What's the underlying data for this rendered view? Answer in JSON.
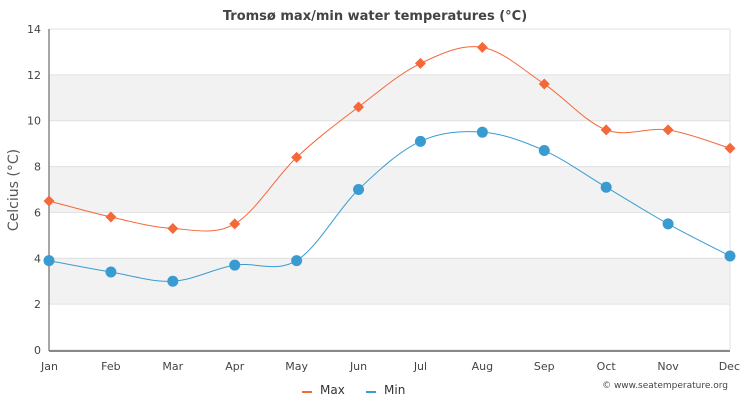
{
  "chart_data": {
    "type": "line",
    "title": "Tromsø max/min water temperatures (°C)",
    "xlabel": "",
    "ylabel": "Celcius (°C)",
    "categories": [
      "Jan",
      "Feb",
      "Mar",
      "Apr",
      "May",
      "Jun",
      "Jul",
      "Aug",
      "Sep",
      "Oct",
      "Nov",
      "Dec"
    ],
    "ylim": [
      0,
      14
    ],
    "yticks": [
      0,
      2,
      4,
      6,
      8,
      10,
      12,
      14
    ],
    "grid": true,
    "legend": "bottom-center",
    "series": [
      {
        "name": "Max",
        "color": "#f4683a",
        "marker": "diamond",
        "values": [
          6.5,
          5.8,
          5.3,
          5.5,
          8.4,
          10.6,
          12.5,
          13.2,
          11.6,
          9.6,
          9.6,
          8.8
        ]
      },
      {
        "name": "Min",
        "color": "#3a9bd1",
        "marker": "circle",
        "values": [
          3.9,
          3.4,
          3.0,
          3.7,
          3.9,
          7.0,
          9.1,
          9.5,
          8.7,
          7.1,
          5.5,
          4.1
        ]
      }
    ],
    "credit": "© www.seatemperature.org"
  }
}
